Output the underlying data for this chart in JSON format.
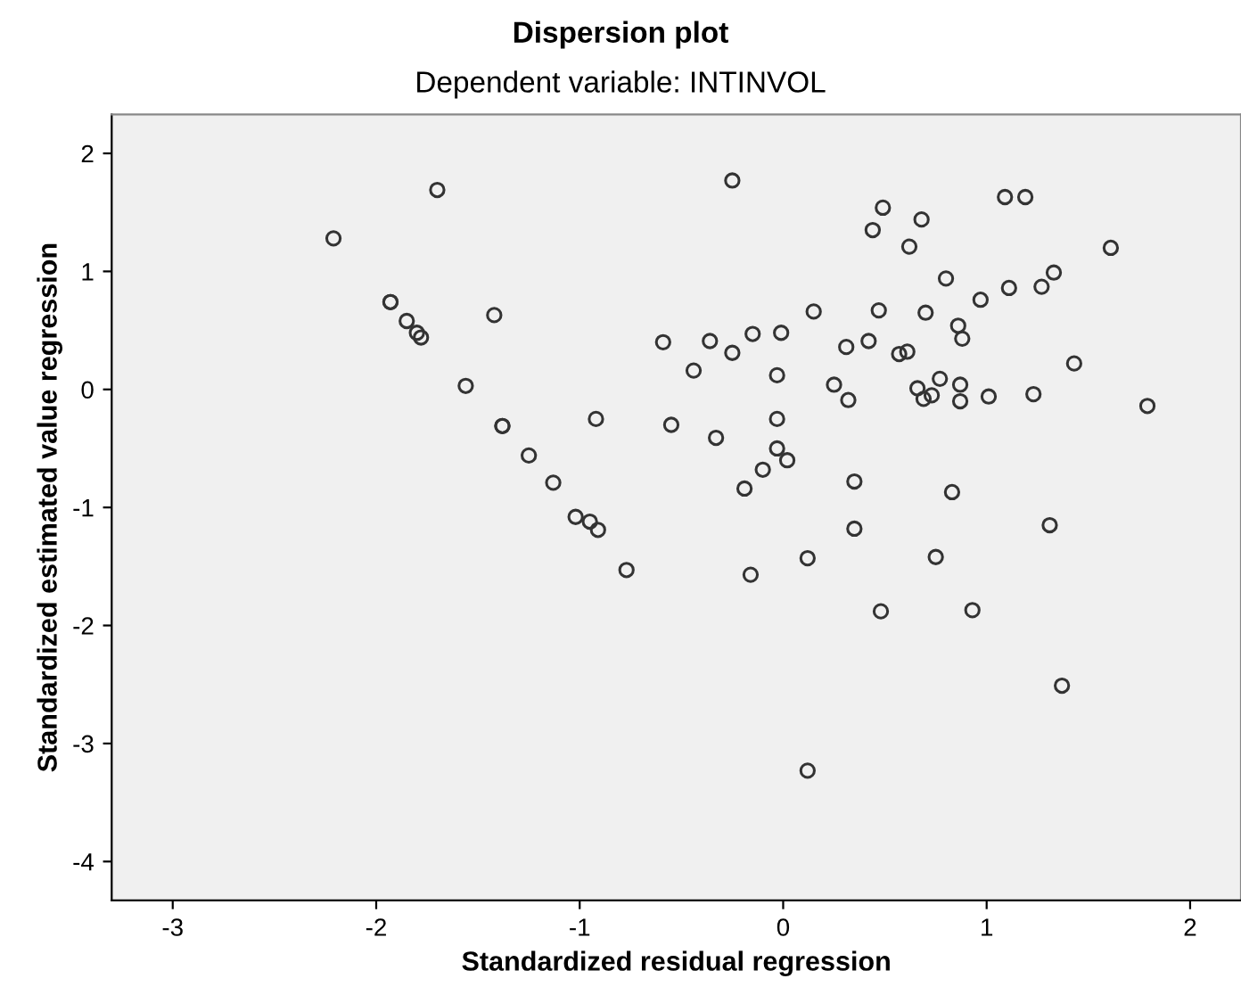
{
  "chart_data": {
    "type": "scatter",
    "title": "Dispersion plot",
    "subtitle": "Dependent variable: INTINVOL",
    "xlabel": "Standardized residual regression",
    "ylabel": "Standardized estimated value regression",
    "xlim": [
      -3.3,
      2.25
    ],
    "ylim": [
      -4.33,
      2.33
    ],
    "xticks": [
      -3,
      -2,
      -1,
      0,
      1,
      2
    ],
    "yticks": [
      -4,
      -3,
      -2,
      -1,
      0,
      1,
      2
    ],
    "grid": false,
    "legend": false,
    "marker": "circle",
    "series": [
      {
        "color": "#333333",
        "x": [
          -2.21,
          -1.7,
          -1.93,
          -1.93,
          -1.85,
          -1.8,
          -1.78,
          -1.56,
          -1.38,
          -1.38,
          -1.42,
          -1.25,
          -1.13,
          -1.02,
          -0.95,
          -0.91,
          -0.92,
          -0.77,
          -0.59,
          -0.55,
          -0.25,
          -0.36,
          -0.44,
          -0.25,
          -0.15,
          -0.01,
          0.15,
          -0.03,
          -0.33,
          -0.03,
          -0.03,
          0.02,
          -0.1,
          -0.19,
          0.35,
          0.35,
          0.83,
          1.31,
          0.49,
          0.44,
          0.68,
          0.62,
          1.09,
          1.19,
          1.61,
          0.8,
          0.97,
          1.11,
          1.27,
          1.33,
          0.47,
          0.7,
          0.86,
          0.88,
          0.31,
          0.42,
          0.57,
          0.61,
          0.25,
          0.32,
          0.66,
          0.69,
          0.73,
          0.77,
          0.87,
          0.87,
          1.01,
          1.23,
          1.43,
          1.79,
          0.12,
          0.75,
          -0.16,
          0.48,
          0.93,
          1.37,
          0.12
        ],
        "values": [
          1.28,
          1.69,
          0.74,
          0.74,
          0.58,
          0.48,
          0.44,
          0.03,
          -0.31,
          -0.31,
          0.63,
          -0.56,
          -0.79,
          -1.08,
          -1.12,
          -1.19,
          -0.25,
          -1.53,
          0.4,
          -0.3,
          1.77,
          0.41,
          0.16,
          0.31,
          0.47,
          0.48,
          0.66,
          0.12,
          -0.41,
          -0.25,
          -0.5,
          -0.6,
          -0.68,
          -0.84,
          -0.78,
          -1.18,
          -0.87,
          -1.15,
          1.54,
          1.35,
          1.44,
          1.21,
          1.63,
          1.63,
          1.2,
          0.94,
          0.76,
          0.86,
          0.87,
          0.99,
          0.67,
          0.65,
          0.54,
          0.43,
          0.36,
          0.41,
          0.3,
          0.32,
          0.04,
          -0.09,
          0.01,
          -0.08,
          -0.05,
          0.09,
          0.04,
          -0.1,
          -0.06,
          -0.04,
          0.22,
          -0.14,
          -1.43,
          -1.42,
          -1.57,
          -1.88,
          -1.87,
          -2.51,
          -3.23
        ]
      }
    ]
  }
}
